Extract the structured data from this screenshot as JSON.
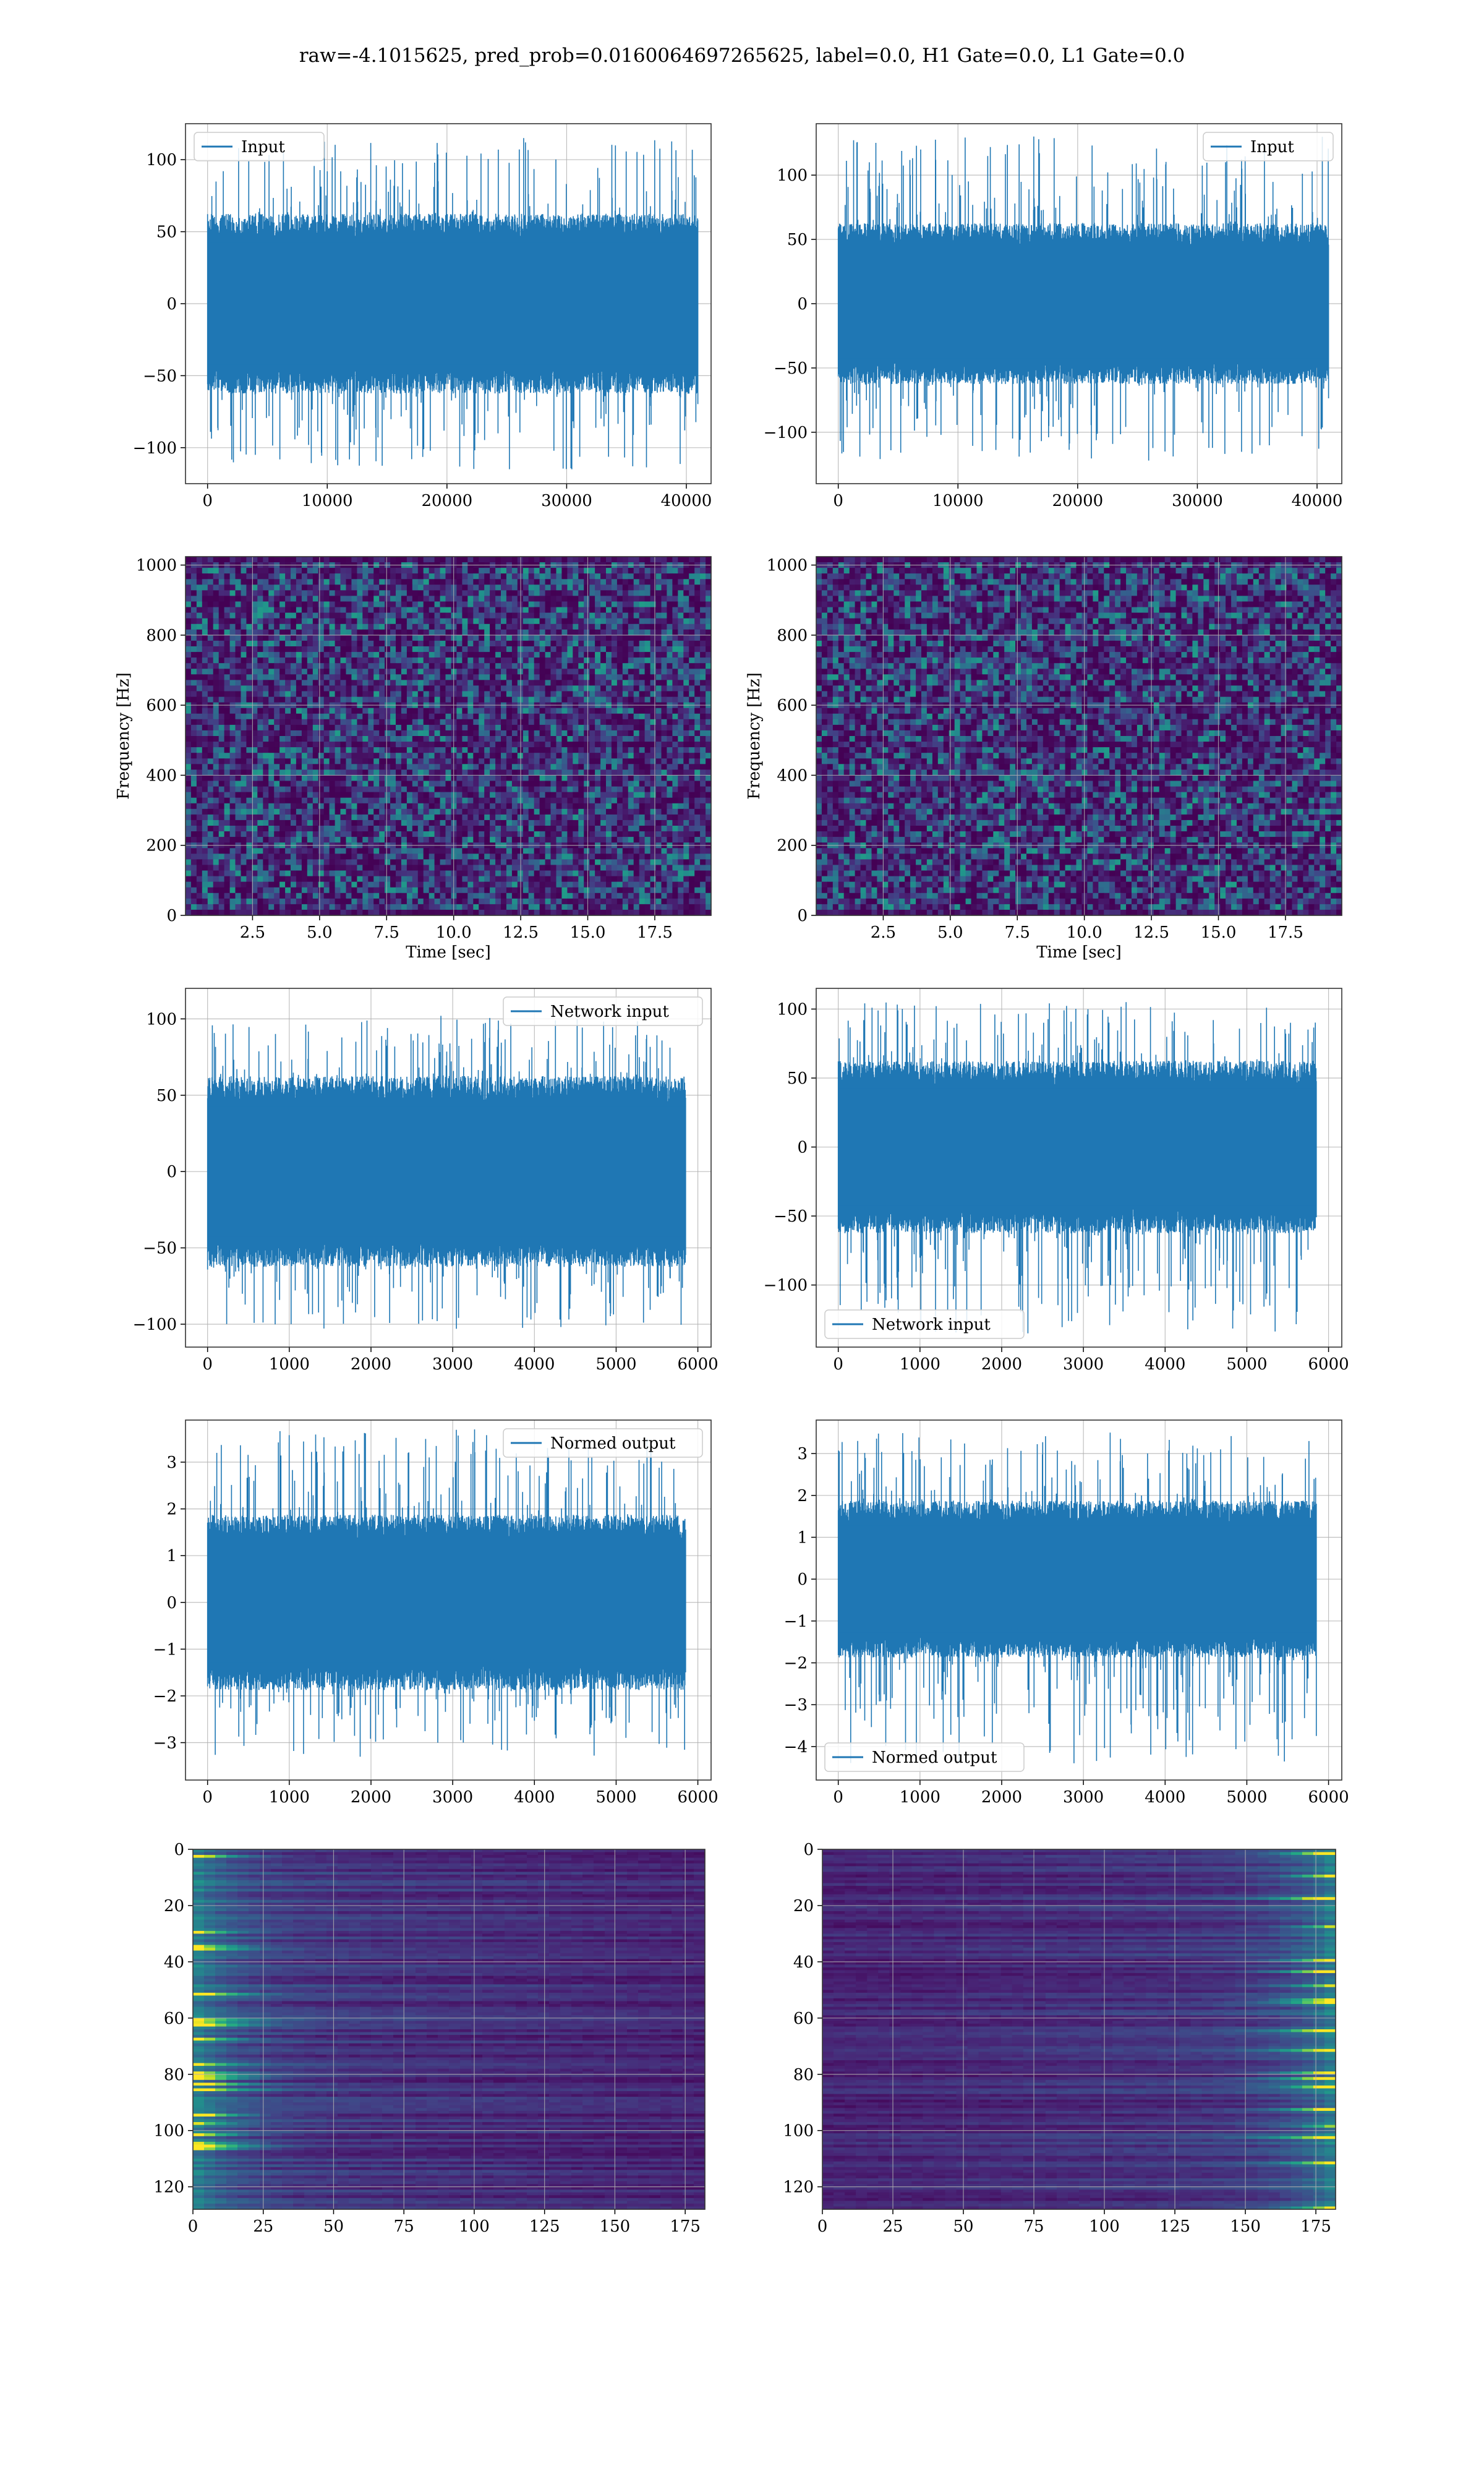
{
  "figure": {
    "suptitle": "raw=-4.1015625, pred_prob=0.0160064697265625, label=0.0, H1 Gate=0.0, L1 Gate=0.0"
  },
  "colors": {
    "line": "#1f77b4",
    "grid": "#b0b0b0",
    "viridis_dark": "#440154",
    "viridis_yellow": "#fde725"
  },
  "chart_data": [
    {
      "type": "line",
      "panel": "r1-left",
      "series": [
        {
          "name": "Input",
          "n_samples": 40960,
          "amplitude_band": [
            -50,
            50
          ],
          "peak_min": -115,
          "peak_max": 115
        }
      ],
      "xlim": [
        0,
        40960
      ],
      "ylim": [
        -125,
        125
      ],
      "xticks": [
        "0",
        "10000",
        "20000",
        "30000",
        "40000"
      ],
      "yticks": [
        "−100",
        "−50",
        "0",
        "50",
        "100"
      ],
      "legend": "top-left",
      "grid": true
    },
    {
      "type": "line",
      "panel": "r1-right",
      "series": [
        {
          "name": "Input",
          "n_samples": 40960,
          "amplitude_band": [
            -50,
            50
          ],
          "peak_min": -122,
          "peak_max": 130
        }
      ],
      "xlim": [
        0,
        40960
      ],
      "ylim": [
        -140,
        140
      ],
      "xticks": [
        "0",
        "10000",
        "20000",
        "30000",
        "40000"
      ],
      "yticks": [
        "−100",
        "−50",
        "0",
        "50",
        "100"
      ],
      "legend": "top-right",
      "grid": true
    },
    {
      "type": "heatmap",
      "panel": "r2-left",
      "xlabel": "Time [sec]",
      "ylabel": "Frequency [Hz]",
      "xlim": [
        0,
        19.6
      ],
      "ylim": [
        0,
        1024
      ],
      "xticks": [
        "2.5",
        "5.0",
        "7.5",
        "10.0",
        "12.5",
        "15.0",
        "17.5"
      ],
      "yticks": [
        "0",
        "200",
        "400",
        "600",
        "800",
        "1000"
      ],
      "colormap": "viridis",
      "grid": true
    },
    {
      "type": "heatmap",
      "panel": "r2-right",
      "xlabel": "Time [sec]",
      "ylabel": "Frequency [Hz]",
      "xlim": [
        0,
        19.6
      ],
      "ylim": [
        0,
        1024
      ],
      "xticks": [
        "2.5",
        "5.0",
        "7.5",
        "10.0",
        "12.5",
        "15.0",
        "17.5"
      ],
      "yticks": [
        "0",
        "200",
        "400",
        "600",
        "800",
        "1000"
      ],
      "colormap": "viridis",
      "grid": true
    },
    {
      "type": "line",
      "panel": "r3-left",
      "series": [
        {
          "name": "Network input",
          "n_samples": 5850,
          "amplitude_band": [
            -50,
            50
          ],
          "peak_min": -103,
          "peak_max": 102
        }
      ],
      "xlim": [
        0,
        6000
      ],
      "ylim": [
        -115,
        120
      ],
      "xticks": [
        "0",
        "1000",
        "2000",
        "3000",
        "4000",
        "5000",
        "6000"
      ],
      "yticks": [
        "−100",
        "−50",
        "0",
        "50",
        "100"
      ],
      "legend": "top-right",
      "grid": true
    },
    {
      "type": "line",
      "panel": "r3-right",
      "series": [
        {
          "name": "Network input",
          "n_samples": 5850,
          "amplitude_band": [
            -50,
            50
          ],
          "peak_min": -135,
          "peak_max": 105
        }
      ],
      "xlim": [
        0,
        6000
      ],
      "ylim": [
        -145,
        115
      ],
      "xticks": [
        "0",
        "1000",
        "2000",
        "3000",
        "4000",
        "5000",
        "6000"
      ],
      "yticks": [
        "−100",
        "−50",
        "0",
        "50",
        "100"
      ],
      "legend": "bottom-left",
      "grid": true
    },
    {
      "type": "line",
      "panel": "r4-left",
      "series": [
        {
          "name": "Normed output",
          "n_samples": 5850,
          "amplitude_band": [
            -1.5,
            1.5
          ],
          "peak_min": -3.3,
          "peak_max": 3.7
        }
      ],
      "xlim": [
        0,
        6000
      ],
      "ylim": [
        -3.8,
        3.9
      ],
      "xticks": [
        "0",
        "1000",
        "2000",
        "3000",
        "4000",
        "5000",
        "6000"
      ],
      "yticks": [
        "−3",
        "−2",
        "−1",
        "0",
        "1",
        "2",
        "3"
      ],
      "legend": "top-right",
      "grid": true
    },
    {
      "type": "line",
      "panel": "r4-right",
      "series": [
        {
          "name": "Normed output",
          "n_samples": 5850,
          "amplitude_band": [
            -1.5,
            1.5
          ],
          "peak_min": -4.4,
          "peak_max": 3.5
        }
      ],
      "xlim": [
        0,
        6000
      ],
      "ylim": [
        -4.8,
        3.8
      ],
      "xticks": [
        "0",
        "1000",
        "2000",
        "3000",
        "4000",
        "5000",
        "6000"
      ],
      "yticks": [
        "−4",
        "−3",
        "−2",
        "−1",
        "0",
        "1",
        "2",
        "3"
      ],
      "legend": "bottom-left",
      "grid": true
    },
    {
      "type": "heatmap",
      "panel": "r5-left",
      "xlim": [
        0,
        182
      ],
      "ylim": [
        128,
        0
      ],
      "xticks": [
        "0",
        "25",
        "50",
        "75",
        "100",
        "125",
        "150",
        "175"
      ],
      "yticks": [
        "0",
        "20",
        "40",
        "60",
        "80",
        "100",
        "120"
      ],
      "colormap": "viridis",
      "grid": true,
      "hot_side": "left"
    },
    {
      "type": "heatmap",
      "panel": "r5-right",
      "xlim": [
        0,
        182
      ],
      "ylim": [
        128,
        0
      ],
      "xticks": [
        "0",
        "25",
        "50",
        "75",
        "100",
        "125",
        "150",
        "175"
      ],
      "yticks": [
        "0",
        "20",
        "40",
        "60",
        "80",
        "100",
        "120"
      ],
      "colormap": "viridis",
      "grid": true,
      "hot_side": "right"
    }
  ]
}
